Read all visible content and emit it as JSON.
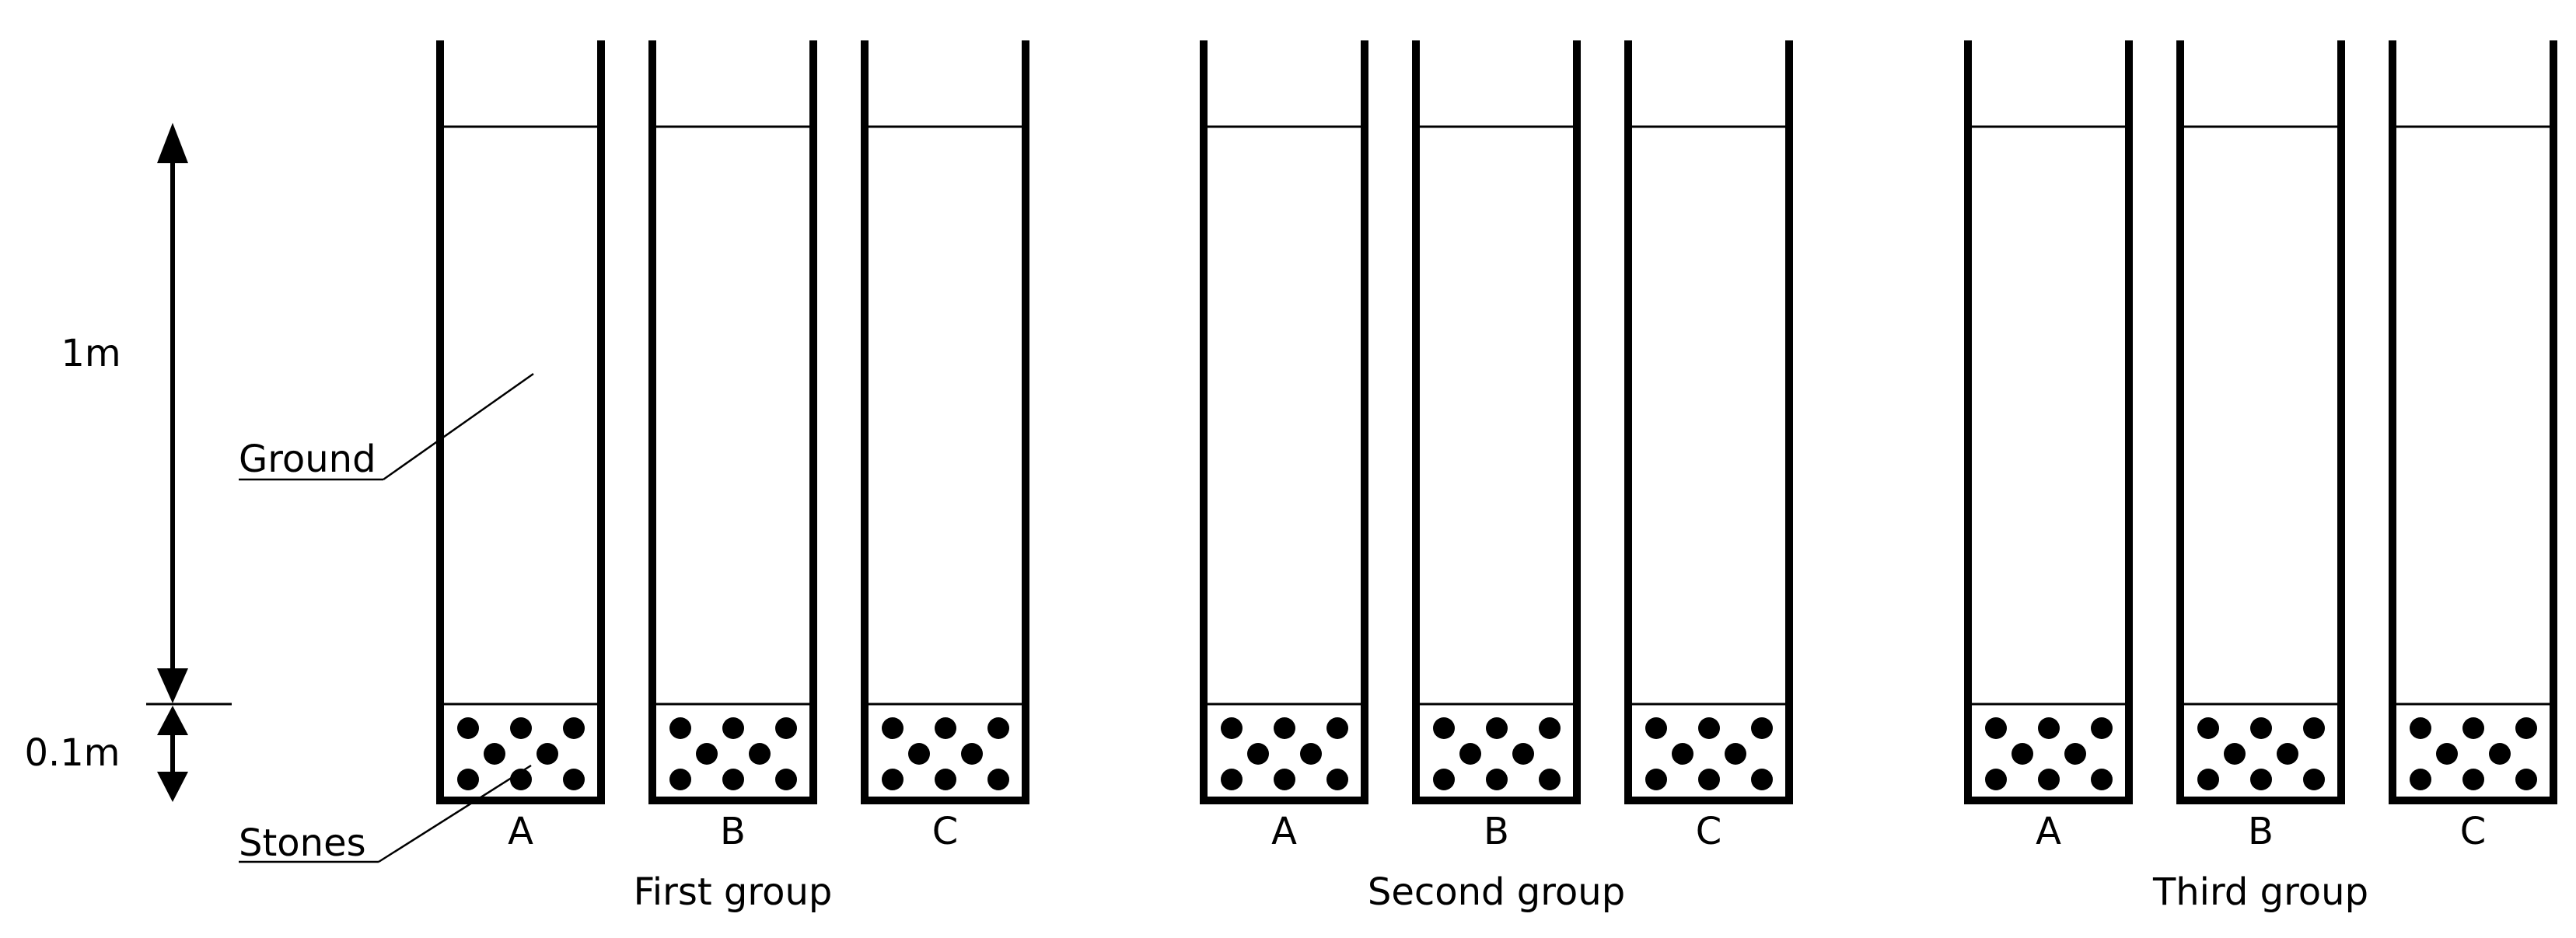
{
  "dimensions": {
    "depth_label": "1m",
    "stones_depth_label": "0.1m"
  },
  "callouts": {
    "ground": "Ground",
    "stones": "Stones"
  },
  "groups": [
    {
      "name": "First group",
      "columns": [
        "A",
        "B",
        "C"
      ]
    },
    {
      "name": "Second group",
      "columns": [
        "A",
        "B",
        "C"
      ]
    },
    {
      "name": "Third group",
      "columns": [
        "A",
        "B",
        "C"
      ]
    }
  ],
  "colors": {
    "stroke": "#000000",
    "background": "#ffffff"
  }
}
